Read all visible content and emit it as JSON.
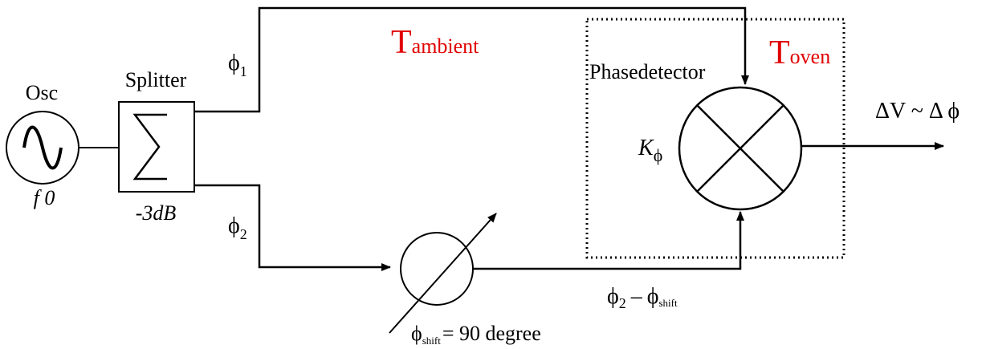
{
  "oscillator": {
    "label": "Osc",
    "freq_label": "f 0"
  },
  "splitter": {
    "label": "Splitter",
    "loss_label": "-3dB",
    "symbol": "Σ"
  },
  "paths": {
    "phi1": {
      "base": "ϕ",
      "sub": "1"
    },
    "phi2": {
      "base": "ϕ",
      "sub": "2"
    },
    "phi_diff": {
      "a": "ϕ",
      "a_sub": "2",
      "minus": "–",
      "b": "ϕ",
      "b_sub": "shift"
    }
  },
  "ambient": {
    "big": "T",
    "small": "ambient",
    "color": "#e00000"
  },
  "oven": {
    "big": "T",
    "small": "oven",
    "color": "#e00000"
  },
  "phase_detector": {
    "label": "Phasedetector",
    "gain_k": "K",
    "gain_sub": "ϕ"
  },
  "phase_shifter": {
    "phi": "ϕ",
    "sub": "shift",
    "value_text": "= 90 degree"
  },
  "output": {
    "label": "ΔV ~ Δ ϕ"
  }
}
